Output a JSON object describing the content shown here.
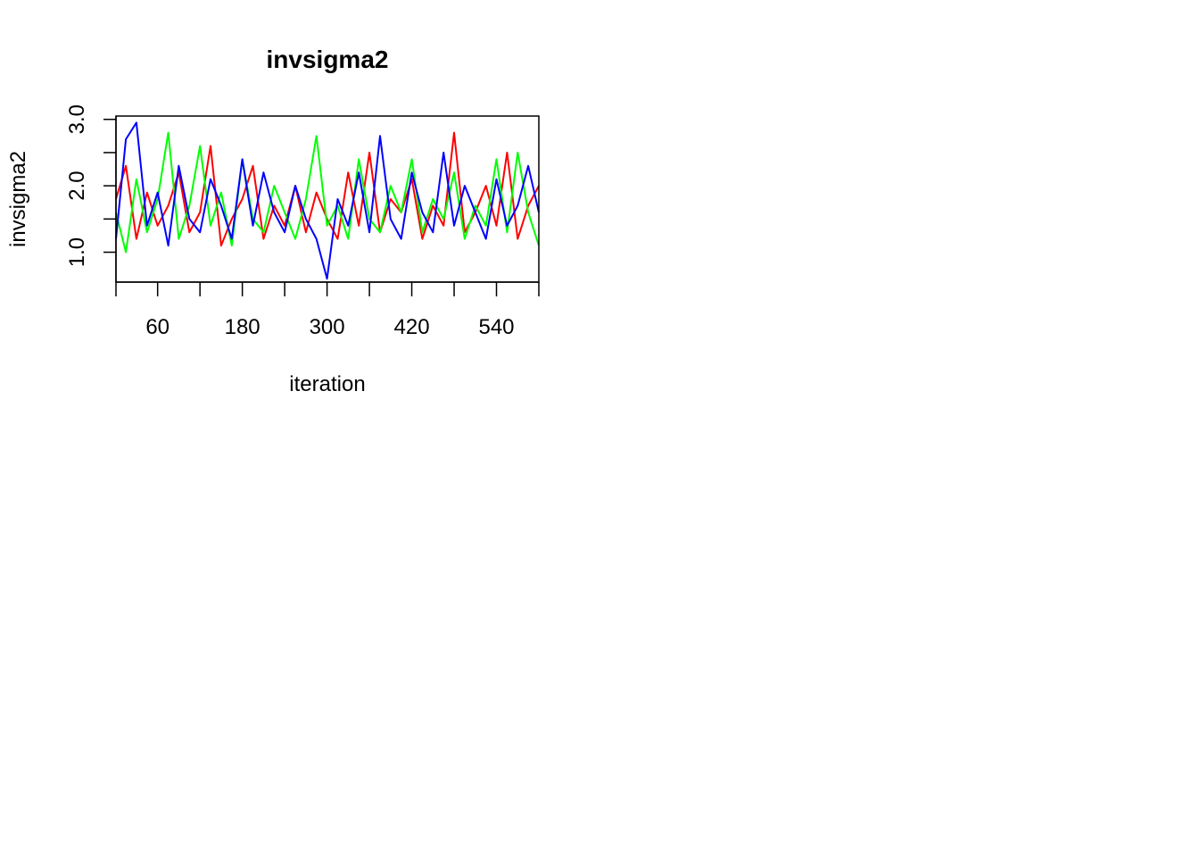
{
  "chart_data": {
    "type": "line",
    "title": "invsigma2",
    "xlabel": "iteration",
    "ylabel": "invsigma2",
    "xlim": [
      1,
      600
    ],
    "ylim": [
      0.55,
      3.05
    ],
    "x_ticks": [
      1,
      60,
      120,
      180,
      240,
      300,
      360,
      420,
      480,
      540,
      600
    ],
    "x_tick_labels": [
      "",
      "60",
      "",
      "180",
      "",
      "300",
      "",
      "420",
      "",
      "540",
      ""
    ],
    "y_ticks": [
      1.0,
      1.5,
      2.0,
      2.5,
      3.0
    ],
    "y_tick_labels": [
      "1.0",
      "",
      "2.0",
      "",
      "3.0"
    ],
    "grid": false,
    "series": [
      {
        "color": "#ff0000",
        "x": [
          1,
          15,
          30,
          45,
          60,
          75,
          90,
          105,
          120,
          135,
          150,
          165,
          180,
          195,
          210,
          225,
          240,
          255,
          270,
          285,
          300,
          315,
          330,
          345,
          360,
          375,
          390,
          405,
          420,
          435,
          450,
          465,
          480,
          495,
          510,
          525,
          540,
          555,
          570,
          585,
          600
        ],
        "values": [
          1.8,
          2.3,
          1.2,
          1.9,
          1.4,
          1.7,
          2.2,
          1.3,
          1.6,
          2.6,
          1.1,
          1.5,
          1.8,
          2.3,
          1.2,
          1.7,
          1.4,
          2.0,
          1.3,
          1.9,
          1.5,
          1.2,
          2.2,
          1.4,
          2.5,
          1.3,
          1.8,
          1.6,
          2.1,
          1.2,
          1.7,
          1.4,
          2.8,
          1.3,
          1.6,
          2.0,
          1.4,
          2.5,
          1.2,
          1.7,
          2.0
        ]
      },
      {
        "color": "#00ff00",
        "x": [
          1,
          15,
          30,
          45,
          60,
          75,
          90,
          105,
          120,
          135,
          150,
          165,
          180,
          195,
          210,
          225,
          240,
          255,
          270,
          285,
          300,
          315,
          330,
          345,
          360,
          375,
          390,
          405,
          420,
          435,
          450,
          465,
          480,
          495,
          510,
          525,
          540,
          555,
          570,
          585,
          600
        ],
        "values": [
          1.6,
          1.0,
          2.1,
          1.3,
          1.8,
          2.8,
          1.2,
          1.7,
          2.6,
          1.4,
          1.9,
          1.1,
          2.4,
          1.5,
          1.3,
          2.0,
          1.6,
          1.2,
          1.8,
          2.75,
          1.4,
          1.7,
          1.2,
          2.4,
          1.5,
          1.3,
          2.0,
          1.6,
          2.4,
          1.3,
          1.8,
          1.5,
          2.2,
          1.2,
          1.7,
          1.4,
          2.4,
          1.3,
          2.5,
          1.6,
          1.1
        ]
      },
      {
        "color": "#0000ff",
        "x": [
          1,
          15,
          30,
          45,
          60,
          75,
          90,
          105,
          120,
          135,
          150,
          165,
          180,
          195,
          210,
          225,
          240,
          255,
          270,
          285,
          300,
          315,
          330,
          345,
          360,
          375,
          390,
          405,
          420,
          435,
          450,
          465,
          480,
          495,
          510,
          525,
          540,
          555,
          570,
          585,
          600
        ],
        "values": [
          1.2,
          2.7,
          2.95,
          1.4,
          1.9,
          1.1,
          2.3,
          1.5,
          1.3,
          2.1,
          1.7,
          1.2,
          2.4,
          1.4,
          2.2,
          1.6,
          1.3,
          2.0,
          1.5,
          1.2,
          0.6,
          1.8,
          1.4,
          2.2,
          1.3,
          2.75,
          1.5,
          1.2,
          2.2,
          1.6,
          1.3,
          2.5,
          1.4,
          2.0,
          1.6,
          1.2,
          2.1,
          1.4,
          1.7,
          2.3,
          1.6
        ]
      }
    ]
  }
}
